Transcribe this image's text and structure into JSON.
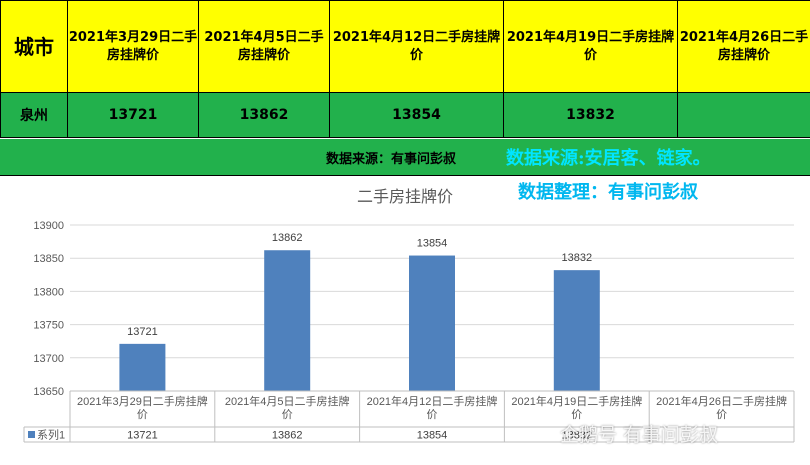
{
  "table": {
    "header": [
      "城市",
      "2021年3月29日二手房挂牌价",
      "2021年4月5日二手房挂牌价",
      "2021年4月12日二手房挂牌价",
      "2021年4月19日二手房挂牌价",
      "2021年4月26日二手房挂牌价"
    ],
    "row": [
      "泉州",
      "13721",
      "13862",
      "13854",
      "13832",
      ""
    ]
  },
  "source_bar": {
    "source": "数据来源：有事问彭叔",
    "overlay1": "数据来源:安居客、链家。",
    "overlay2": "数据整理：有事问彭叔"
  },
  "chart_data": {
    "type": "bar",
    "title": "二手房挂牌价",
    "categories": [
      "2021年3月29日二手房挂牌价",
      "2021年4月5日二手房挂牌价",
      "2021年4月12日二手房挂牌价",
      "2021年4月19日二手房挂牌价",
      "2021年4月26日二手房挂牌价"
    ],
    "category_lines": [
      [
        "2021年3月29日二手房挂牌",
        "价"
      ],
      [
        "2021年4月5日二手房挂牌",
        "价"
      ],
      [
        "2021年4月12日二手房挂牌",
        "价"
      ],
      [
        "2021年4月19日二手房挂牌",
        "价"
      ],
      [
        "2021年4月26日二手房挂牌",
        "价"
      ]
    ],
    "series": [
      {
        "name": "系列1",
        "values": [
          13721,
          13862,
          13854,
          13832,
          null
        ]
      }
    ],
    "table_values": [
      "13721",
      "13862",
      "13854",
      "13832",
      ""
    ],
    "ylim": [
      13650,
      13900
    ],
    "yticks": [
      13650,
      13700,
      13750,
      13800,
      13850,
      13900
    ],
    "bar_color": "#4f81bd",
    "grid": true,
    "data_table": true
  },
  "watermark": "企鹅号 有事问彭叔"
}
